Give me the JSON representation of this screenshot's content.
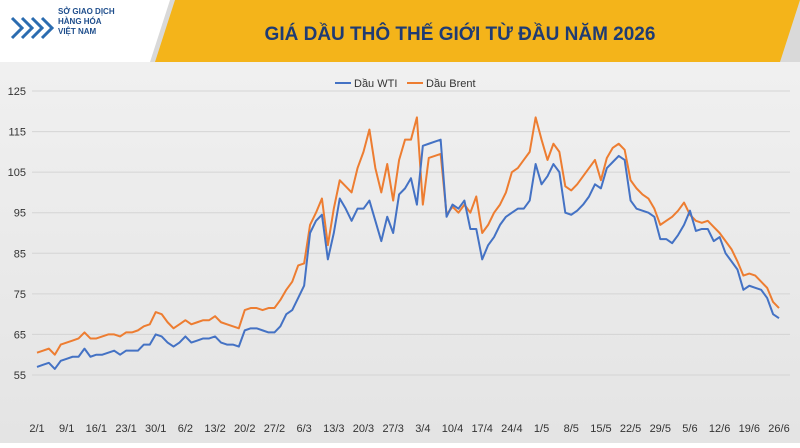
{
  "logo": {
    "lines": [
      "SỞ GIAO DỊCH",
      "HÀNG HÓA",
      "VIỆT NAM"
    ]
  },
  "chart_data": {
    "type": "line",
    "title": "GIÁ DẦU THÔ THẾ GIỚI TỪ ĐẦU NĂM 2026",
    "categories": [
      "2/1",
      null,
      null,
      null,
      null,
      "9/1",
      null,
      null,
      null,
      null,
      "16/1",
      null,
      null,
      null,
      null,
      "23/1",
      null,
      null,
      null,
      null,
      "30/1",
      null,
      null,
      null,
      null,
      "6/2",
      null,
      null,
      null,
      null,
      "13/2",
      null,
      null,
      null,
      null,
      "20/2",
      null,
      null,
      null,
      null,
      "27/2",
      null,
      null,
      null,
      null,
      "6/3",
      null,
      null,
      null,
      null,
      "13/3",
      null,
      null,
      null,
      null,
      "20/3",
      null,
      null,
      null,
      null,
      "27/3",
      null,
      null,
      null,
      null,
      "3/4",
      null,
      null,
      null,
      null,
      "10/4",
      null,
      null,
      null,
      null,
      "17/4",
      null,
      null,
      null,
      null,
      "24/4",
      null,
      null,
      null,
      null,
      "1/5",
      null,
      null,
      null,
      null,
      "8/5",
      null,
      null,
      null,
      null,
      "15/5",
      null,
      null,
      null,
      null,
      "22/5",
      null,
      null,
      null,
      null,
      "29/5",
      null,
      null,
      null,
      null,
      "5/6",
      null,
      null,
      null,
      null,
      "12/6",
      null,
      null,
      null,
      null,
      "19/6",
      null,
      null,
      null,
      null,
      "26/6"
    ],
    "series": [
      {
        "name": "Dầu WTI",
        "color": "#4472c4",
        "values": [
          57,
          57.5,
          58,
          56.5,
          58.5,
          59,
          59.5,
          59.5,
          61.5,
          59.5,
          60,
          60,
          60.5,
          61,
          60,
          61,
          61,
          61,
          62.5,
          62.5,
          65,
          64.5,
          63,
          62,
          63,
          64.5,
          63,
          63.5,
          64,
          64,
          64.5,
          63,
          62.5,
          62.5,
          62,
          66,
          66.5,
          66.5,
          66,
          65.5,
          65.5,
          67,
          70,
          71,
          74,
          77,
          90,
          93,
          94.5,
          83.5,
          90,
          98.5,
          96,
          93,
          96,
          96,
          98,
          93,
          88,
          94,
          90,
          99.5,
          101,
          103.5,
          97,
          111.5,
          112,
          112.5,
          113,
          94,
          97,
          96,
          98,
          91,
          91,
          83.5,
          87,
          89,
          92,
          94,
          95,
          96,
          96,
          98,
          107,
          102,
          104,
          107,
          105,
          95,
          94.5,
          95.5,
          97,
          99,
          102,
          101,
          106,
          107.5,
          109,
          108,
          98,
          96,
          95.5,
          95,
          94,
          88.5,
          88.5,
          87.5,
          89.5,
          92,
          95.5,
          90.5,
          91,
          91,
          88,
          89,
          85,
          83,
          81,
          76,
          77,
          76.5,
          76,
          74,
          70,
          69
        ]
      },
      {
        "name": "Dầu Brent",
        "color": "#ed7d31",
        "values": [
          60.5,
          61,
          61.5,
          60,
          62.5,
          63,
          63.5,
          64,
          65.5,
          64,
          64,
          64.5,
          65,
          65,
          64.5,
          65.5,
          65.5,
          66,
          67,
          67.5,
          70.5,
          70,
          68,
          66.5,
          67.5,
          68.5,
          67.5,
          68,
          68.5,
          68.5,
          69.5,
          68,
          67.5,
          67,
          66.5,
          71,
          71.5,
          71.5,
          71,
          71.5,
          71.5,
          73.5,
          76,
          78,
          82,
          82.5,
          92,
          95,
          98.5,
          87,
          96,
          103,
          101.5,
          100,
          106,
          110,
          115.5,
          106,
          100,
          107,
          98,
          108,
          113,
          113,
          118.5,
          97,
          108.5,
          109,
          109.5,
          94.5,
          96.5,
          95,
          97,
          95,
          99,
          90,
          92,
          95,
          97,
          100,
          105,
          106,
          108,
          110,
          118.5,
          113,
          108,
          112,
          110,
          101.5,
          100.5,
          102,
          104,
          106,
          108,
          103,
          108.5,
          111,
          112,
          110.5,
          103,
          101,
          99.5,
          98.5,
          96,
          92,
          93,
          94,
          95.5,
          97.5,
          94.5,
          93,
          92.5,
          93,
          91.5,
          90,
          88,
          86,
          83,
          79.5,
          80,
          79.5,
          78,
          76.5,
          73,
          71.5
        ]
      }
    ],
    "ylim": [
      55,
      125
    ],
    "yticks": [
      55,
      65,
      75,
      85,
      95,
      105,
      115,
      125
    ],
    "grid": true,
    "legend": "top"
  }
}
